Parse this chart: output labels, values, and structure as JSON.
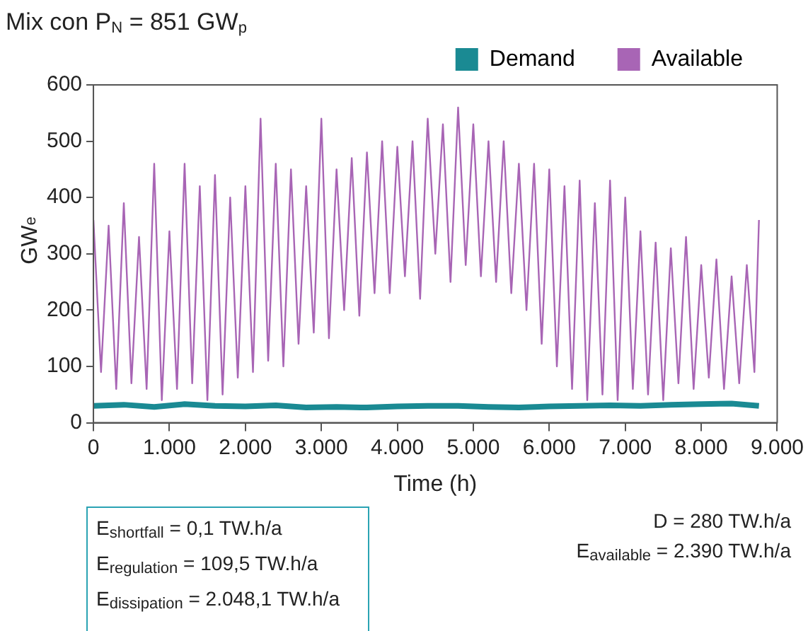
{
  "chart_data": {
    "type": "line",
    "title": "Mix con P$_{N}$ = 851 GW$_{p}$",
    "xlabel": "Time (h)",
    "ylabel": "GW$_{e}$",
    "xlim": [
      0,
      9000
    ],
    "xticks": [
      0,
      {
        "value": 1000,
        "label": "1.000"
      },
      {
        "value": 2000,
        "label": "2.000"
      },
      {
        "value": 3000,
        "label": "3.000"
      },
      {
        "value": 4000,
        "label": "4.000"
      },
      {
        "value": 5000,
        "label": "5.000"
      },
      {
        "value": 6000,
        "label": "6.000"
      },
      {
        "value": 7000,
        "label": "7.000"
      },
      {
        "value": 8000,
        "label": "8.000"
      },
      {
        "value": 9000,
        "label": "9.000"
      }
    ],
    "ylim": [
      0,
      600
    ],
    "yticks": [
      0,
      100,
      200,
      300,
      400,
      500,
      600
    ],
    "grid": false,
    "legend": "top",
    "marker": "none",
    "line_style": "solid",
    "series": [
      {
        "name": "Demand",
        "color": "#1a8a93",
        "x": [
          0,
          400,
          800,
          1200,
          1600,
          2000,
          2400,
          2800,
          3200,
          3600,
          4000,
          4400,
          4800,
          5200,
          5600,
          6000,
          6400,
          6800,
          7200,
          7600,
          8000,
          8400,
          8760
        ],
        "values": [
          30,
          32,
          28,
          33,
          30,
          29,
          31,
          27,
          28,
          27,
          29,
          30,
          30,
          28,
          27,
          29,
          30,
          31,
          30,
          32,
          33,
          34,
          30
        ]
      },
      {
        "name": "Available",
        "color": "#a865b5",
        "x": [
          0,
          100,
          200,
          300,
          400,
          500,
          600,
          700,
          800,
          900,
          1000,
          1100,
          1200,
          1300,
          1400,
          1500,
          1600,
          1700,
          1800,
          1900,
          2000,
          2100,
          2200,
          2300,
          2400,
          2500,
          2600,
          2700,
          2800,
          2900,
          3000,
          3100,
          3200,
          3300,
          3400,
          3500,
          3600,
          3700,
          3800,
          3900,
          4000,
          4100,
          4200,
          4300,
          4400,
          4500,
          4600,
          4700,
          4800,
          4900,
          5000,
          5100,
          5200,
          5300,
          5400,
          5500,
          5600,
          5700,
          5800,
          5900,
          6000,
          6100,
          6200,
          6300,
          6400,
          6500,
          6600,
          6700,
          6800,
          6900,
          7000,
          7100,
          7200,
          7300,
          7400,
          7500,
          7600,
          7700,
          7800,
          7900,
          8000,
          8100,
          8200,
          8300,
          8400,
          8500,
          8600,
          8700,
          8760
        ],
        "values": [
          360,
          90,
          350,
          60,
          390,
          70,
          330,
          60,
          460,
          40,
          340,
          60,
          460,
          70,
          420,
          40,
          440,
          50,
          400,
          80,
          420,
          90,
          540,
          110,
          460,
          100,
          450,
          140,
          420,
          160,
          540,
          150,
          450,
          200,
          470,
          190,
          480,
          230,
          500,
          230,
          490,
          260,
          500,
          220,
          540,
          300,
          530,
          250,
          560,
          280,
          530,
          260,
          500,
          250,
          500,
          230,
          460,
          200,
          460,
          140,
          450,
          100,
          420,
          60,
          430,
          40,
          390,
          50,
          430,
          40,
          400,
          60,
          340,
          50,
          320,
          40,
          310,
          70,
          330,
          60,
          280,
          80,
          290,
          60,
          260,
          70,
          280,
          90,
          360
        ]
      }
    ],
    "annotations": [
      "E$_{shortfall}$ = 0,1 TW.h/a",
      "E$_{regulation}$ = 109,5 TW.h/a",
      "E$_{dissipation}$ = 2.048,1 TW.h/a",
      "D = 280 TW.h/a",
      "E$_{available}$ = 2.390 TW.h/a"
    ]
  }
}
